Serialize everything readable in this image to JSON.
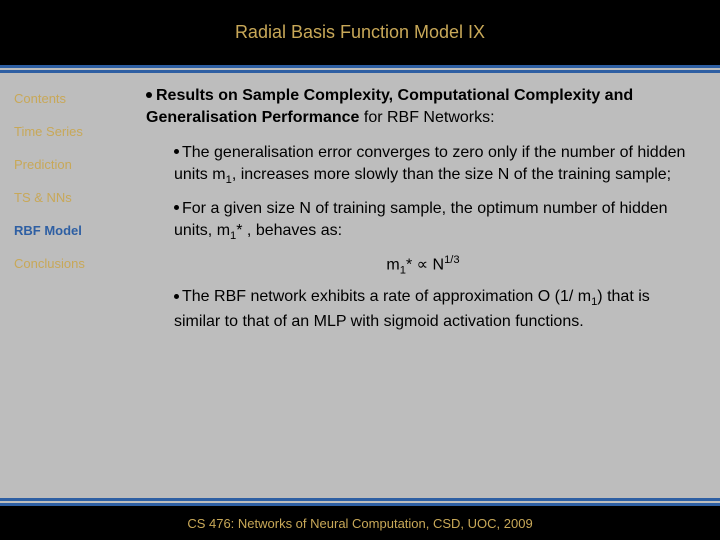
{
  "colors": {
    "header_bg": "#000000",
    "accent_gold": "#c8a858",
    "accent_blue": "#2e5fa3",
    "body_bg": "#bdbdbd",
    "text": "#000000"
  },
  "typography": {
    "title_fontsize": 18,
    "sidebar_fontsize": 13,
    "body_fontsize": 16,
    "footer_fontsize": 13,
    "font_family": "Verdana"
  },
  "header": {
    "title": "Radial Basis Function Model IX"
  },
  "sidebar": {
    "items": [
      {
        "label": "Contents",
        "active": false
      },
      {
        "label": "Time Series",
        "active": false
      },
      {
        "label": "Prediction",
        "active": false
      },
      {
        "label": "TS & NNs",
        "active": false
      },
      {
        "label": "RBF Model",
        "active": true
      },
      {
        "label": "Conclusions",
        "active": false
      }
    ]
  },
  "content": {
    "lead_bold": "Results on Sample Complexity, Computational Complexity and Generalisation Performance",
    "lead_tail": " for RBF Networks:",
    "points": [
      {
        "text_pre": "The generalisation error converges to zero only if the number of hidden units m",
        "sub1": "1",
        "text_mid": ", increases more slowly than the size N of the training sample;"
      },
      {
        "text_pre": "For a given size N of training sample, the optimum number of hidden units, m",
        "sub1": "1",
        "text_mid": "* , behaves as:"
      }
    ],
    "formula": {
      "lhs_base": "m",
      "lhs_sub": "1",
      "lhs_sup": "*",
      "rel": " ∝ ",
      "rhs_base": "N",
      "rhs_sup": "1/3"
    },
    "point3": {
      "text_pre": "The RBF network exhibits a rate of approximation O (1/ m",
      "sub1": "1",
      "text_mid": ") that is similar to that of an MLP with sigmoid activation functions."
    }
  },
  "footer": {
    "text": "CS 476: Networks of Neural Computation, CSD, UOC, 2009"
  }
}
